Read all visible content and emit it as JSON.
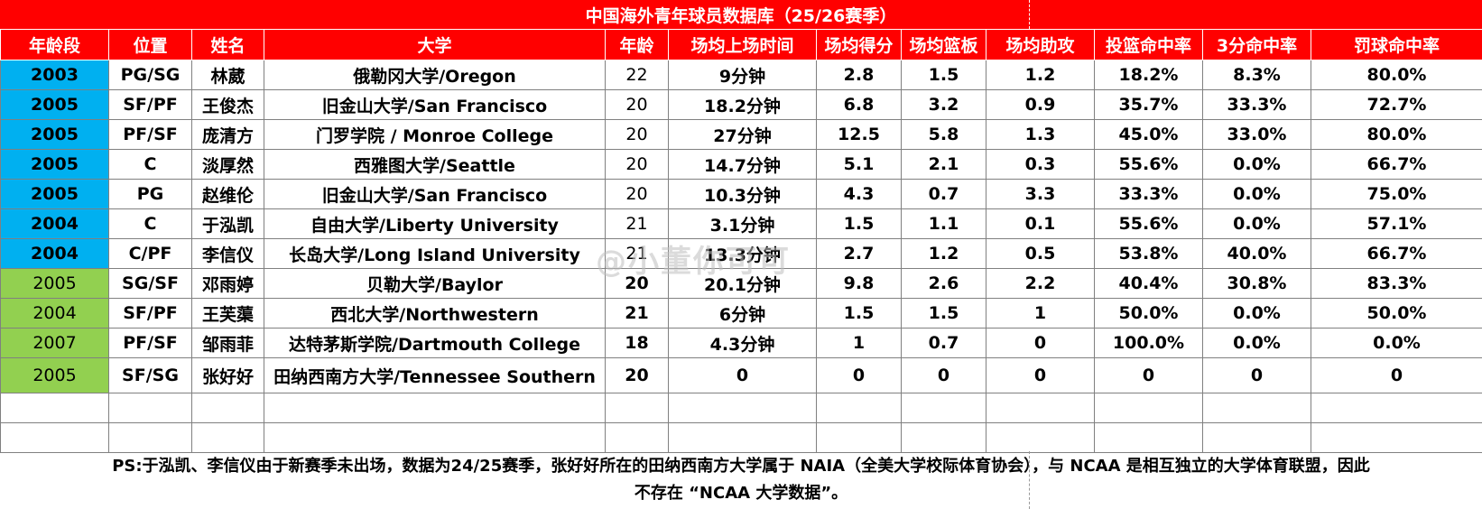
{
  "title": "中国海外青年球员数据库（25/26赛季）",
  "headers": [
    "年龄段",
    "位置",
    "姓名",
    "大学",
    "年龄",
    "场均上场时间",
    "场均得分",
    "场均篮板",
    "场均助攻",
    "投篮命中率",
    "3分命中率",
    "罚球命中率"
  ],
  "rows": [
    [
      "2003",
      "PG/SG",
      "林葳",
      "俄勒冈大学/Oregon",
      "22",
      "9分钟",
      "2.8",
      "1.5",
      "1.2",
      "18.2%",
      "8.3%",
      "80.0%"
    ],
    [
      "2005",
      "SF/PF",
      "王俊杰",
      "旧金山大学/San Francisco",
      "20",
      "18.2分钟",
      "6.8",
      "3.2",
      "0.9",
      "35.7%",
      "33.3%",
      "72.7%"
    ],
    [
      "2005",
      "PF/SF",
      "庞清方",
      "门罗学院 / Monroe College",
      "20",
      "27分钟",
      "12.5",
      "5.8",
      "1.3",
      "45.0%",
      "33.0%",
      "80.0%"
    ],
    [
      "2005",
      "C",
      "淡厚然",
      "西雅图大学/Seattle",
      "20",
      "14.7分钟",
      "5.1",
      "2.1",
      "0.3",
      "55.6%",
      "0.0%",
      "66.7%"
    ],
    [
      "2005",
      "PG",
      "赵维伦",
      "旧金山大学/San Francisco",
      "20",
      "10.3分钟",
      "4.3",
      "0.7",
      "3.3",
      "33.3%",
      "0.0%",
      "75.0%"
    ],
    [
      "2004",
      "C",
      "于泓凯",
      "自由大学/Liberty University",
      "21",
      "3.1分钟",
      "1.5",
      "1.1",
      "0.1",
      "55.6%",
      "0.0%",
      "57.1%"
    ],
    [
      "2004",
      "C/PF",
      "李信仪",
      "长岛大学/Long Island University",
      "21",
      "13.3分钟",
      "2.7",
      "1.2",
      "0.5",
      "53.8%",
      "40.0%",
      "66.7%"
    ],
    [
      "2005",
      "SG/SF",
      "邓雨婷",
      "贝勒大学/Baylor",
      "20",
      "20.1分钟",
      "9.8",
      "2.6",
      "2.2",
      "40.4%",
      "30.8%",
      "83.3%"
    ],
    [
      "2004",
      "SF/PF",
      "王芙蕖",
      "西北大学/Northwestern",
      "21",
      "6分钟",
      "1.5",
      "1.5",
      "1",
      "50.0%",
      "0.0%",
      "50.0%"
    ],
    [
      "2007",
      "PF/SF",
      "邹雨菲",
      "达特茅斯学院/Dartmouth College",
      "18",
      "4.3分钟",
      "1",
      "0.7",
      "0",
      "100.0%",
      "0.0%",
      "0.0%"
    ],
    [
      "2005",
      "SF/SG",
      "张好好",
      "田纳西南方大学/Tennessee Southern",
      "20",
      "0",
      "0",
      "0",
      "0",
      "0",
      "0",
      "0"
    ]
  ],
  "note_line1": "PS:于泓凯、李信仪由于新赛季未出场，数据为24/25赛季，张好好所在的田纳西南方大学属于 NAIA（全美大学校际体育协会），与 NCAA 是相互独立的大学体育联盟，因此",
  "note_line2": "不存在 “NCAA 大学数据”。",
  "watermark": "@小董你可可"
}
